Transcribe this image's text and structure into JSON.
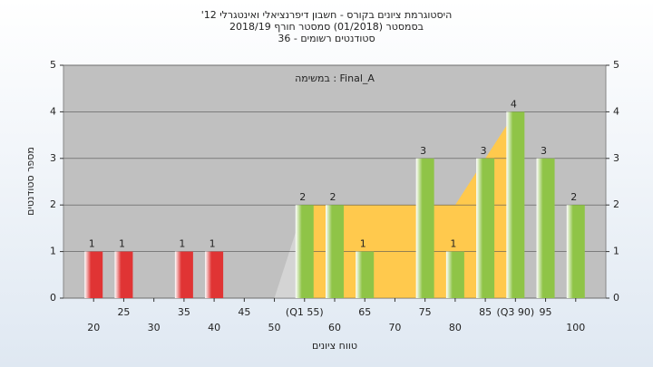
{
  "chart_data": {
    "type": "bar",
    "title_lines": [
      "היסטוגרמת ציונים בקורס - חשבון דיפרנציאלי ואינטגרלי 12'",
      "בסמסטר  (01/2018)  סמסטר חורף 2018/19",
      "סטודנטים רשומים - 36"
    ],
    "annotation": "Final_A : במשימה",
    "x_label": "טווח ציונים",
    "y_label": "מספר סטודנטים",
    "x": [
      20,
      25,
      30,
      35,
      40,
      45,
      50,
      55,
      60,
      65,
      70,
      75,
      80,
      85,
      90,
      95,
      100
    ],
    "values": [
      1,
      1,
      0,
      1,
      1,
      0,
      0,
      2,
      2,
      1,
      0,
      3,
      1,
      3,
      4,
      3,
      2
    ],
    "colors": [
      "#e03434",
      "#e03434",
      "#e03434",
      "#e03434",
      "#e03434",
      "#e03434",
      "#e03434",
      "#8fc447",
      "#8fc447",
      "#8fc447",
      "#8fc447",
      "#8fc447",
      "#8fc447",
      "#8fc447",
      "#8fc447",
      "#8fc447",
      "#8fc447"
    ],
    "xlim": [
      15,
      105
    ],
    "xticks": [
      20,
      25,
      30,
      35,
      40,
      45,
      50,
      {
        "value": 55,
        "label": "(Q1 55)"
      },
      60,
      65,
      70,
      75,
      80,
      85,
      {
        "value": 90,
        "label": "(Q3 90)"
      },
      95,
      100
    ],
    "ylim": [
      0,
      5
    ],
    "yticks": [
      0,
      1,
      2,
      3,
      4,
      5
    ],
    "y2lim": [
      0,
      5
    ],
    "y2ticks": [
      0,
      1,
      2,
      3,
      4,
      5
    ],
    "area": {
      "x": [
        55,
        80,
        90
      ],
      "values": [
        2,
        2,
        4
      ],
      "color": "#ffc94d"
    },
    "lower_area": {
      "x": [
        50,
        55
      ],
      "values": [
        0,
        2
      ],
      "color": "#d4d4d4"
    },
    "grid": true
  }
}
